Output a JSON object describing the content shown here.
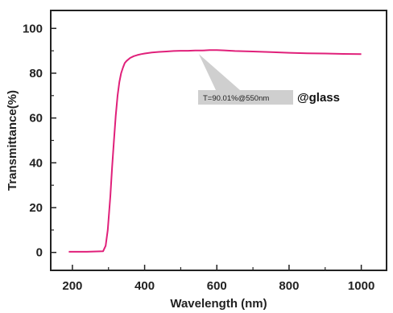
{
  "chart_data": {
    "type": "line",
    "xlabel": "Wavelength (nm)",
    "ylabel": "Transmittance(%)",
    "xlim": [
      140,
      1070
    ],
    "ylim": [
      -8,
      108
    ],
    "xticks": [
      200,
      400,
      600,
      800,
      1000
    ],
    "yticks": [
      0,
      20,
      40,
      60,
      80,
      100
    ],
    "grid": false,
    "series": [
      {
        "color": "#e0207a",
        "x": [
          190,
          240,
          285,
          292,
          298,
          305,
          310,
          315,
          320,
          325,
          330,
          335,
          340,
          345,
          350,
          360,
          370,
          380,
          390,
          400,
          420,
          440,
          460,
          480,
          500,
          520,
          540,
          560,
          580,
          600,
          620,
          650,
          700,
          750,
          800,
          850,
          900,
          950,
          1000
        ],
        "y": [
          0.3,
          0.3,
          0.5,
          3,
          10,
          25,
          38,
          50,
          61,
          70,
          76,
          80,
          82.5,
          84.5,
          85.5,
          86.8,
          87.6,
          88.1,
          88.5,
          88.8,
          89.2,
          89.5,
          89.7,
          89.9,
          90.0,
          90.0,
          90.1,
          90.1,
          90.3,
          90.3,
          90.2,
          89.9,
          89.7,
          89.4,
          89.1,
          88.9,
          88.8,
          88.6,
          88.5
        ]
      }
    ],
    "annotation": {
      "text": "T=90.01%@550nm",
      "x": 550,
      "y": 90.01
    },
    "label": "@glass"
  }
}
